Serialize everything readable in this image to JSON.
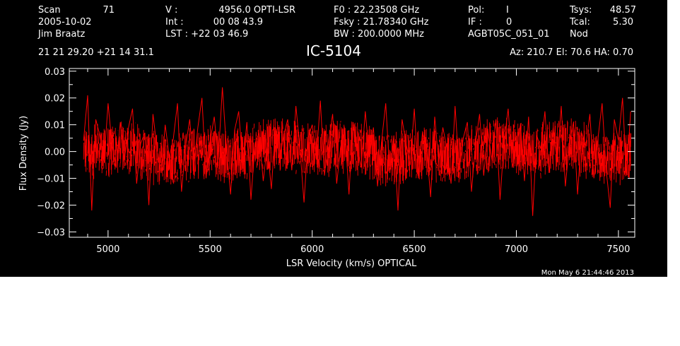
{
  "header": {
    "scan_label": "Scan",
    "scan_value": "71",
    "date": "2005-10-02",
    "observer": "Jim Braatz",
    "ra_dec": "21 21 29.20  +21 14 31.1",
    "v_label": "V   :",
    "v_value": "4956.0 OPTI-LSR",
    "int_label": "Int   :",
    "int_value": "00 08 43.9",
    "lst_text": "LST : +22 03 46.9",
    "f0_text": "F0   :  22.23508 GHz",
    "fsky_text": "Fsky :  21.78340 GHz",
    "bw_text": "BW   : 200.0000 MHz",
    "pol_label": "Pol:",
    "pol_value": "I",
    "if_label": "IF :",
    "if_value": "0",
    "project": "AGBT05C_051_01",
    "tsys_label": "Tsys:",
    "tsys_value": "48.57",
    "tcal_label": "Tcal:",
    "tcal_value": "5.30",
    "proc": "Nod",
    "source": "IC-5104",
    "az_el_ha": "Az: 210.7   El:  70.6   HA:  0.70"
  },
  "footer": {
    "timestamp": "Mon May  6 21:44:46 2013"
  },
  "colors": {
    "background": "#000000",
    "axes": "#ffffff",
    "series": "#ff0000"
  },
  "chart_data": {
    "type": "line",
    "xlabel": "LSR Velocity (km/s) OPTICAL",
    "ylabel": "Flux Density (Jy)",
    "xlim": [
      4810,
      7580
    ],
    "ylim": [
      -0.032,
      0.031
    ],
    "xticks": [
      5000,
      5500,
      6000,
      6500,
      7000,
      7500
    ],
    "yticks": [
      -0.03,
      -0.02,
      -0.01,
      0.0,
      0.01,
      0.02,
      0.03
    ],
    "ytick_labels": [
      "−0.03",
      "−0.02",
      "−0.01",
      "0.00",
      "0.01",
      "0.02",
      "0.03"
    ],
    "grid": false,
    "series": [
      {
        "x": [
          4880,
          4900,
          4920,
          4940,
          4960,
          4980,
          5000,
          5020,
          5040,
          5060,
          5080,
          5100,
          5120,
          5140,
          5160,
          5180,
          5200,
          5220,
          5240,
          5260,
          5280,
          5300,
          5320,
          5340,
          5360,
          5380,
          5400,
          5420,
          5440,
          5460,
          5480,
          5500,
          5520,
          5540,
          5560,
          5580,
          5600,
          5620,
          5640,
          5660,
          5680,
          5700,
          5720,
          5740,
          5760,
          5780,
          5800,
          5820,
          5840,
          5860,
          5880,
          5900,
          5920,
          5940,
          5960,
          5980,
          6000,
          6020,
          6040,
          6060,
          6080,
          6100,
          6120,
          6140,
          6160,
          6180,
          6200,
          6220,
          6240,
          6260,
          6280,
          6300,
          6320,
          6340,
          6360,
          6380,
          6400,
          6420,
          6440,
          6460,
          6480,
          6500,
          6520,
          6540,
          6560,
          6580,
          6600,
          6620,
          6640,
          6660,
          6680,
          6700,
          6720,
          6740,
          6760,
          6780,
          6800,
          6820,
          6840,
          6860,
          6880,
          6900,
          6920,
          6940,
          6960,
          6980,
          7000,
          7020,
          7040,
          7060,
          7080,
          7100,
          7120,
          7140,
          7160,
          7180,
          7200,
          7220,
          7240,
          7260,
          7280,
          7300,
          7320,
          7340,
          7360,
          7380,
          7400,
          7420,
          7440,
          7460,
          7480,
          7500,
          7520,
          7540,
          7560
        ],
        "y": [
          0.004,
          0.021,
          -0.022,
          0.012,
          0.006,
          -0.004,
          0.018,
          0.002,
          -0.006,
          0.011,
          -0.003,
          0.009,
          0.016,
          -0.012,
          0.003,
          0.007,
          -0.02,
          0.014,
          0.001,
          -0.008,
          0.01,
          -0.002,
          0.005,
          0.018,
          -0.015,
          0.002,
          0.012,
          -0.006,
          0.009,
          0.02,
          -0.01,
          0.004,
          0.013,
          -0.003,
          0.024,
          0.001,
          -0.016,
          0.008,
          0.015,
          -0.005,
          0.011,
          -0.018,
          0.003,
          0.007,
          -0.011,
          0.002,
          -0.014,
          0.009,
          -0.004,
          0.006,
          0.012,
          -0.007,
          0.017,
          0.001,
          -0.019,
          0.005,
          0.01,
          -0.003,
          0.019,
          -0.009,
          0.004,
          0.014,
          -0.012,
          0.002,
          0.008,
          -0.016,
          0.011,
          0.001,
          -0.006,
          0.015,
          -0.002,
          0.009,
          -0.013,
          0.004,
          0.018,
          -0.008,
          0.006,
          -0.022,
          0.012,
          0.003,
          -0.005,
          0.016,
          -0.01,
          0.007,
          0.002,
          -0.017,
          0.013,
          -0.004,
          0.009,
          0.001,
          -0.012,
          0.017,
          -0.007,
          0.005,
          0.011,
          -0.015,
          0.003,
          0.014,
          -0.009,
          0.008,
          -0.003,
          0.012,
          -0.018,
          0.004,
          0.016,
          -0.006,
          0.002,
          0.01,
          -0.011,
          0.013,
          -0.024,
          0.006,
          0.001,
          0.015,
          -0.008,
          0.009,
          -0.004,
          0.017,
          -0.013,
          0.003,
          0.011,
          -0.016,
          0.007,
          0.002,
          0.014,
          -0.01,
          0.005,
          0.018,
          -0.007,
          -0.021,
          0.012,
          0.004,
          0.02,
          -0.009,
          0.015
        ]
      }
    ]
  }
}
